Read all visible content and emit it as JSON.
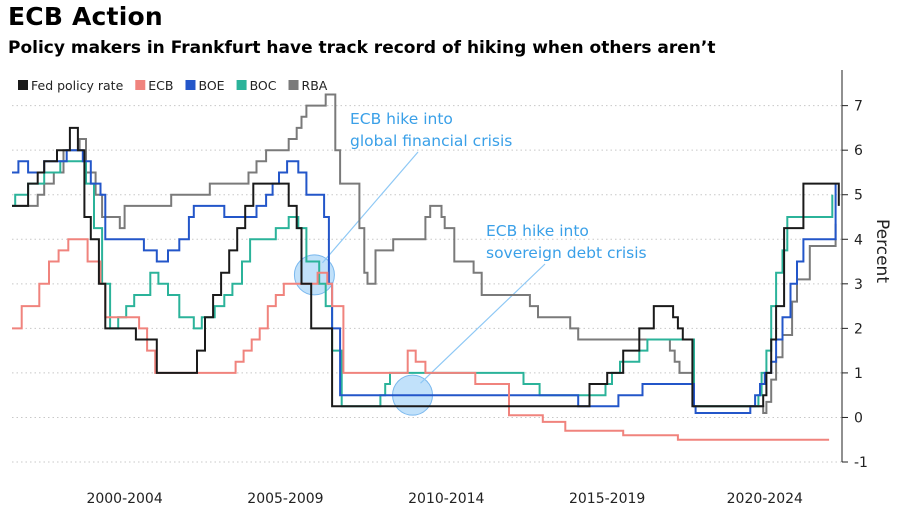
{
  "title": "ECB Action",
  "subtitle": "Policy makers in Frankfurt have track record of hiking when others aren’t",
  "chart_data": {
    "type": "line",
    "ylabel": "Percent",
    "ylim": [
      -1,
      7.8
    ],
    "yticks": [
      -1,
      0,
      1,
      2,
      3,
      4,
      5,
      6,
      7
    ],
    "xlim": [
      1999.0,
      2024.8
    ],
    "xtick_labels": [
      {
        "label": "2000-2004",
        "center": 2002.5
      },
      {
        "label": "2005-2009",
        "center": 2007.5
      },
      {
        "label": "2010-2014",
        "center": 2012.5
      },
      {
        "label": "2015-2019",
        "center": 2017.5
      },
      {
        "label": "2020-2024",
        "center": 2022.4
      }
    ],
    "grid": "dotted horizontal",
    "legend_position": "top-left",
    "series": [
      {
        "name": "Fed policy rate",
        "color": "#1a1a1a",
        "x": [
          1999.0,
          1999.5,
          1999.8,
          2000.0,
          2000.4,
          2000.8,
          2001.05,
          2001.25,
          2001.45,
          2001.7,
          2001.9,
          2002.85,
          2003.5,
          2004.5,
          2004.75,
          2005.0,
          2005.25,
          2005.5,
          2005.75,
          2006.0,
          2006.25,
          2006.5,
          2007.6,
          2007.85,
          2008.0,
          2008.3,
          2008.95,
          2013.0,
          2015.95,
          2016.95,
          2017.5,
          2018.0,
          2018.5,
          2018.95,
          2019.55,
          2019.7,
          2019.85,
          2020.15,
          2022.2,
          2022.35,
          2022.45,
          2022.6,
          2022.75,
          2023.0,
          2023.6,
          2024.5,
          2024.7
        ],
        "y": [
          4.75,
          5.25,
          5.5,
          5.75,
          6.0,
          6.5,
          6.0,
          4.5,
          4.0,
          3.0,
          2.0,
          1.75,
          1.0,
          1.0,
          1.5,
          2.25,
          2.75,
          3.25,
          3.75,
          4.25,
          4.75,
          5.25,
          4.75,
          4.25,
          3.0,
          2.0,
          0.25,
          0.25,
          0.25,
          0.75,
          1.0,
          1.5,
          2.0,
          2.5,
          2.25,
          2.0,
          1.75,
          0.25,
          0.25,
          0.5,
          1.0,
          1.75,
          2.5,
          4.25,
          5.25,
          5.25,
          4.75
        ]
      },
      {
        "name": "ECB",
        "color": "#f0837d",
        "x": [
          1999.0,
          1999.3,
          1999.85,
          2000.15,
          2000.45,
          2000.75,
          2001.35,
          2001.75,
          2001.9,
          2002.95,
          2003.2,
          2003.45,
          2005.95,
          2006.2,
          2006.45,
          2006.7,
          2006.95,
          2007.2,
          2007.45,
          2008.5,
          2008.8,
          2008.95,
          2009.3,
          2011.3,
          2011.55,
          2011.85,
          2013.4,
          2014.45,
          2015.5,
          2016.2,
          2018.0,
          2019.7,
          2024.4
        ],
        "y": [
          2.0,
          2.5,
          3.0,
          3.5,
          3.75,
          4.0,
          3.5,
          3.0,
          2.25,
          2.0,
          1.5,
          1.0,
          1.25,
          1.5,
          1.75,
          2.0,
          2.5,
          2.75,
          3.0,
          3.25,
          3.0,
          2.5,
          1.0,
          1.5,
          1.25,
          1.0,
          0.75,
          0.05,
          -0.1,
          -0.3,
          -0.4,
          -0.5,
          -0.5
        ]
      },
      {
        "name": "BOE",
        "color": "#2356c9",
        "x": [
          1999.0,
          1999.2,
          1999.5,
          2000.0,
          2000.7,
          2001.2,
          2001.45,
          2001.75,
          2001.9,
          2003.1,
          2003.5,
          2003.85,
          2004.2,
          2004.5,
          2004.65,
          2005.6,
          2006.6,
          2006.9,
          2007.1,
          2007.3,
          2007.55,
          2007.9,
          2008.15,
          2008.7,
          2008.85,
          2008.95,
          2009.2,
          2016.6,
          2017.85,
          2018.6,
          2020.2,
          2020.25,
          2021.95,
          2022.1,
          2022.25,
          2022.4,
          2022.6,
          2022.75,
          2022.95,
          2023.2,
          2023.4,
          2023.6,
          2024.6
        ],
        "y": [
          5.5,
          5.75,
          5.5,
          5.75,
          6.0,
          5.75,
          5.25,
          5.0,
          4.0,
          3.75,
          3.5,
          3.75,
          4.0,
          4.5,
          4.75,
          4.5,
          4.75,
          5.0,
          5.25,
          5.5,
          5.75,
          5.5,
          5.0,
          4.5,
          3.0,
          2.0,
          0.5,
          0.25,
          0.5,
          0.75,
          0.25,
          0.1,
          0.25,
          0.5,
          0.75,
          1.0,
          1.25,
          1.75,
          2.25,
          3.0,
          3.5,
          4.0,
          5.25
        ]
      },
      {
        "name": "BOC",
        "color": "#2bb39a",
        "x": [
          1999.0,
          1999.1,
          1999.5,
          2000.0,
          2000.5,
          2001.0,
          2001.3,
          2001.55,
          2001.8,
          2002.05,
          2002.3,
          2002.55,
          2002.8,
          2003.3,
          2003.55,
          2003.85,
          2004.2,
          2004.65,
          2004.9,
          2005.3,
          2005.6,
          2005.85,
          2006.15,
          2006.4,
          2007.2,
          2007.6,
          2007.9,
          2008.15,
          2008.55,
          2008.75,
          2008.95,
          2009.25,
          2010.45,
          2010.6,
          2010.7,
          2010.75,
          2014.9,
          2015.4,
          2017.45,
          2017.65,
          2017.9,
          2018.5,
          2018.75,
          2020.2,
          2022.2,
          2022.3,
          2022.45,
          2022.6,
          2022.75,
          2022.95,
          2023.1,
          2024.5
        ],
        "y": [
          4.75,
          5.0,
          5.25,
          5.5,
          5.75,
          5.75,
          5.25,
          4.25,
          3.0,
          2.0,
          2.25,
          2.5,
          2.75,
          3.25,
          3.0,
          2.75,
          2.25,
          2.0,
          2.25,
          2.5,
          2.75,
          3.0,
          3.5,
          4.0,
          4.25,
          4.5,
          4.25,
          3.5,
          3.0,
          2.5,
          1.5,
          0.25,
          0.5,
          0.75,
          0.75,
          1.0,
          0.75,
          0.5,
          0.75,
          1.0,
          1.25,
          1.5,
          1.75,
          0.25,
          0.5,
          1.0,
          1.5,
          2.5,
          3.25,
          3.75,
          4.5,
          5.0
        ]
      },
      {
        "name": "RBA",
        "color": "#7a7a7a",
        "x": [
          1999.0,
          1999.8,
          2000.0,
          2000.3,
          2000.6,
          2001.1,
          2001.3,
          2001.6,
          2001.8,
          2002.35,
          2002.5,
          2003.8,
          2003.95,
          2005.15,
          2006.35,
          2006.6,
          2006.9,
          2007.6,
          2007.85,
          2008.0,
          2008.15,
          2008.75,
          2008.9,
          2009.05,
          2009.2,
          2009.8,
          2009.95,
          2010.05,
          2010.3,
          2010.85,
          2011.85,
          2012.0,
          2012.35,
          2012.45,
          2012.75,
          2013.35,
          2013.6,
          2015.1,
          2015.35,
          2016.35,
          2016.6,
          2019.45,
          2019.6,
          2019.75,
          2020.15,
          2020.2,
          2022.35,
          2022.45,
          2022.6,
          2022.75,
          2022.95,
          2023.25,
          2023.4,
          2023.8,
          2024.6
        ],
        "y": [
          4.75,
          5.0,
          5.25,
          5.5,
          6.0,
          6.25,
          5.5,
          5.0,
          4.5,
          4.25,
          4.75,
          4.75,
          5.0,
          5.25,
          5.5,
          5.75,
          6.0,
          6.25,
          6.5,
          6.75,
          7.0,
          7.25,
          7.25,
          6.0,
          5.25,
          4.25,
          3.25,
          3.0,
          3.75,
          4.0,
          4.5,
          4.75,
          4.5,
          4.25,
          3.5,
          3.25,
          2.75,
          2.5,
          2.25,
          2.0,
          1.75,
          1.5,
          1.25,
          1.0,
          0.75,
          0.25,
          0.1,
          0.35,
          0.85,
          1.35,
          1.85,
          2.6,
          3.1,
          3.85,
          4.35
        ]
      }
    ],
    "annotations": [
      {
        "text": [
          "ECB hike into",
          "global financial crisis"
        ],
        "point": [
          2008.4,
          3.2
        ]
      },
      {
        "text": [
          "ECB hike into",
          "sovereign debt crisis"
        ],
        "point": [
          2011.45,
          0.5
        ]
      }
    ]
  }
}
